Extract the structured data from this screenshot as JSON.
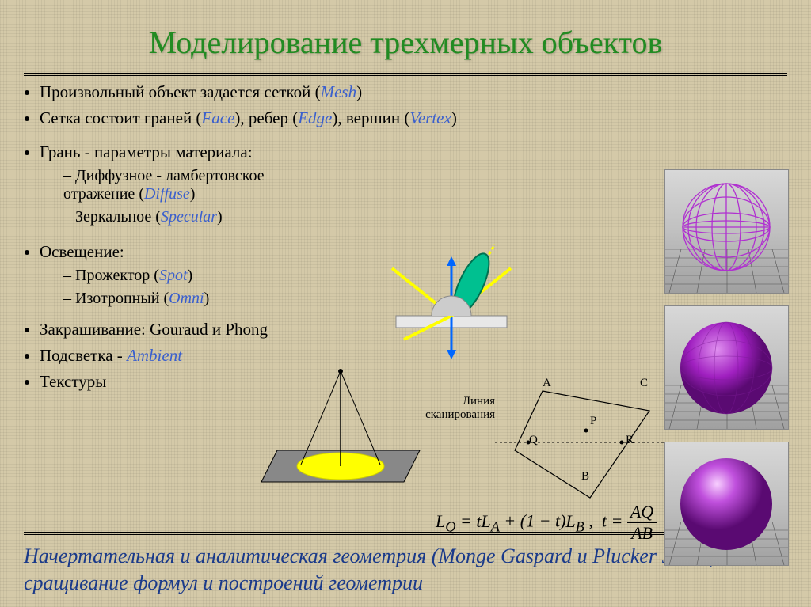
{
  "title": "Моделирование трехмерных объектов",
  "bullets": {
    "b1_pre": "Произвольный объект задается сеткой (",
    "b1_term": "Mesh",
    "b2_pre": "Сетка состоит граней (",
    "b2_t1": "Face",
    "b2_mid1": "), ребер (",
    "b2_t2": "Edge",
    "b2_mid2": "), вершин (",
    "b2_t3": "Vertex",
    "b3": "Грань - параметры материала:",
    "b3s1_pre": "Диффузное - ламбертовское отражение (",
    "b3s1_t": "Diffuse",
    "b3s2_pre": "Зеркальное (",
    "b3s2_t": "Specular",
    "b4": "Освещение:",
    "b4s1_pre": "Прожектор (",
    "b4s1_t": "Spot",
    "b4s2_pre": "Изотропный (",
    "b4s2_t": "Omni",
    "b5": "Закрашивание: Gouraud и Phong",
    "b6_pre": "Подсветка - ",
    "b6_t": "Ambient",
    "b7": "Текстуры",
    "close": ")"
  },
  "scan": {
    "label": "Линия сканирования",
    "A": "A",
    "B": "B",
    "C": "C",
    "P": "P",
    "Q": "Q",
    "R": "R"
  },
  "formula_html": "<i>L<sub>Q</sub></i> = <i>tL<sub>A</sub></i> + (1 − <i>t</i>)<i>L<sub>B</sub></i> ,&nbsp; <i>t</i> = <span style='display:inline-block;vertical-align:middle;text-align:center;'><span style='display:block;border-bottom:1px solid #000;padding:0 4px;'><i>AQ</i></span><span style='display:block;padding:0 4px;'><i>AB</i></span></span>",
  "footer": "Начертательная и аналитическая геометрия (Monge Gaspard и Plucker Julius) – сращивание формул и построений геометрии",
  "colors": {
    "title": "#228b22",
    "term": "#3a5fcd",
    "footer": "#1a3a8a",
    "sphere": "#a020c0",
    "sphere_wire": "#b030d0",
    "yellow": "#ffff00",
    "cyan": "#00c080",
    "blue_arrow": "#0066ff"
  }
}
